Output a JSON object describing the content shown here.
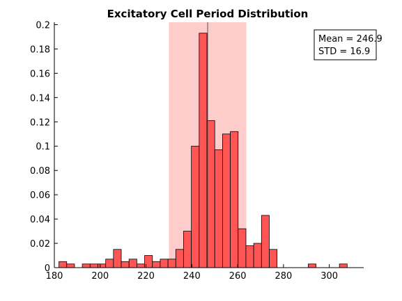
{
  "chart_data": {
    "type": "bar",
    "title": "Excitatory Cell Period Distribution",
    "xlabel": "",
    "ylabel": "",
    "xlim": [
      180,
      315
    ],
    "ylim": [
      0,
      0.202
    ],
    "x_ticks": [
      180,
      200,
      220,
      240,
      260,
      280,
      300
    ],
    "y_ticks": [
      0,
      0.02,
      0.04,
      0.06,
      0.08,
      0.1,
      0.12,
      0.14,
      0.16,
      0.18,
      0.2
    ],
    "bin_width": 3.4,
    "bins": [
      {
        "x": 182.0,
        "value": 0.005
      },
      {
        "x": 185.4,
        "value": 0.003
      },
      {
        "x": 188.8,
        "value": 0.0
      },
      {
        "x": 192.2,
        "value": 0.003
      },
      {
        "x": 195.6,
        "value": 0.003
      },
      {
        "x": 199.0,
        "value": 0.003
      },
      {
        "x": 202.4,
        "value": 0.007
      },
      {
        "x": 205.8,
        "value": 0.015
      },
      {
        "x": 209.2,
        "value": 0.005
      },
      {
        "x": 212.6,
        "value": 0.007
      },
      {
        "x": 216.0,
        "value": 0.003
      },
      {
        "x": 219.4,
        "value": 0.01
      },
      {
        "x": 222.8,
        "value": 0.005
      },
      {
        "x": 226.2,
        "value": 0.007
      },
      {
        "x": 229.6,
        "value": 0.007
      },
      {
        "x": 233.0,
        "value": 0.015
      },
      {
        "x": 236.4,
        "value": 0.03
      },
      {
        "x": 239.8,
        "value": 0.1
      },
      {
        "x": 243.2,
        "value": 0.193
      },
      {
        "x": 246.6,
        "value": 0.121
      },
      {
        "x": 250.0,
        "value": 0.097
      },
      {
        "x": 253.4,
        "value": 0.11
      },
      {
        "x": 256.8,
        "value": 0.112
      },
      {
        "x": 260.2,
        "value": 0.032
      },
      {
        "x": 263.6,
        "value": 0.018
      },
      {
        "x": 267.0,
        "value": 0.02
      },
      {
        "x": 270.4,
        "value": 0.043
      },
      {
        "x": 273.8,
        "value": 0.015
      },
      {
        "x": 290.8,
        "value": 0.003
      },
      {
        "x": 304.4,
        "value": 0.003
      }
    ],
    "mean": 246.9,
    "std": 16.9,
    "shaded_range": [
      230.0,
      263.8
    ],
    "bar_color": "#ff5555",
    "shade_color": "#ffcccc",
    "legend_placement": "top-right",
    "annotation_lines": [
      "Mean = 246.9",
      "STD = 16.9"
    ]
  }
}
